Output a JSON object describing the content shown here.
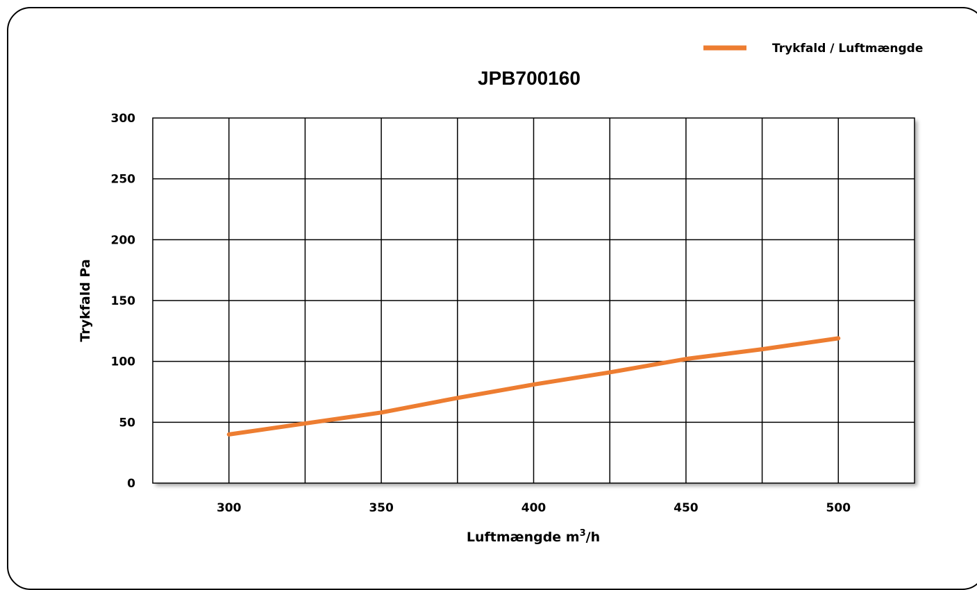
{
  "chart_data": {
    "type": "line",
    "title": "JPB700160",
    "xlabel": "Luftmængde m",
    "xlabel_sup": "3",
    "xlabel_suffix": "/h",
    "ylabel": "Trykfald Pa",
    "xlim": [
      275,
      525
    ],
    "ylim": [
      0,
      300
    ],
    "x_ticks": [
      300,
      350,
      400,
      450,
      500
    ],
    "y_ticks": [
      0,
      50,
      100,
      150,
      200,
      250,
      300
    ],
    "x_gridlines": [
      300,
      325,
      350,
      375,
      400,
      425,
      450,
      475,
      500
    ],
    "grid": true,
    "legend_position": "top-right",
    "series": [
      {
        "name": "Trykfald / Luftmængde",
        "color": "#ED7D31",
        "x": [
          300,
          325,
          350,
          375,
          400,
          425,
          450,
          475,
          500
        ],
        "y": [
          40,
          49,
          58,
          70,
          81,
          91,
          102,
          110,
          119
        ]
      }
    ]
  }
}
